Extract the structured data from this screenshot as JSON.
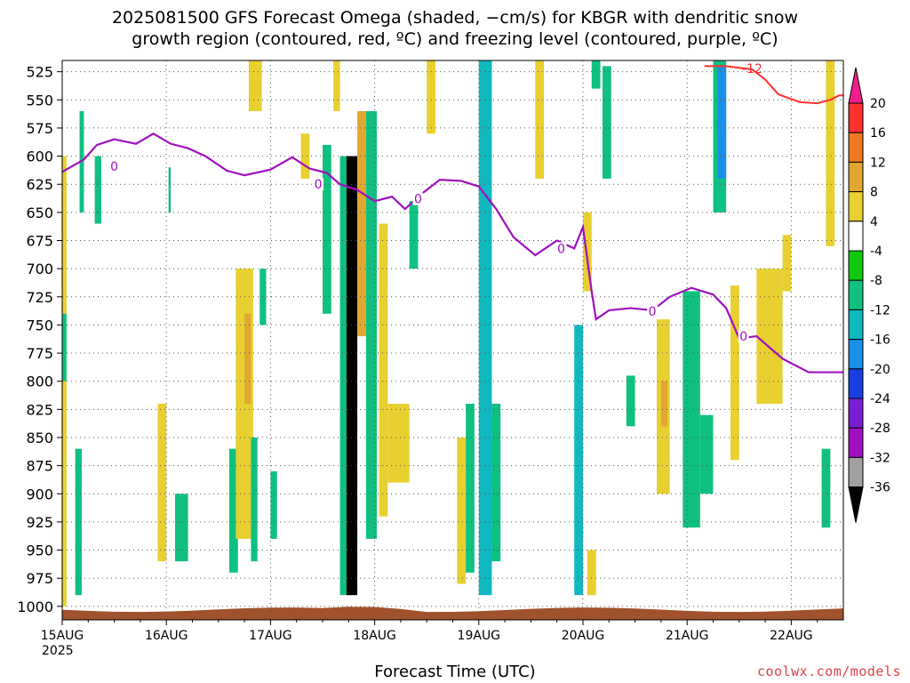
{
  "header": {
    "title_line1": "2025081500 GFS Forecast Omega (shaded, −cm/s) for KBGR with dendritic snow",
    "title_line2": "growth region (contoured, red, ºC) and freezing level (contoured, purple, ºC)"
  },
  "footer": {
    "xlabel": "Forecast Time (UTC)",
    "year": "2025",
    "credit": "coolwx.com/models"
  },
  "chart_data": {
    "type": "heatmap",
    "title": "2025081500 GFS Forecast Omega (shaded, −cm/s) for KBGR with dendritic snow growth region (contoured, red, ºC) and freezing level (contoured, purple, ºC)",
    "xlabel": "Forecast Time (UTC)",
    "ylabel": "",
    "y_axis": {
      "ticks": [
        525,
        550,
        575,
        600,
        625,
        650,
        675,
        700,
        725,
        750,
        775,
        800,
        825,
        850,
        875,
        900,
        925,
        950,
        975,
        1000
      ],
      "range": [
        1012,
        515
      ],
      "units": "hPa"
    },
    "x_axis": {
      "ticks": [
        "15AUG",
        "16AUG",
        "17AUG",
        "18AUG",
        "19AUG",
        "20AUG",
        "21AUG",
        "22AUG"
      ],
      "tick_hours": [
        0,
        24,
        48,
        72,
        96,
        120,
        144,
        168
      ],
      "range_hours": [
        0,
        180
      ]
    },
    "grid": true,
    "colorbar": {
      "labels": [
        "20",
        "16",
        "12",
        "8",
        "4",
        "-4",
        "-8",
        "-12",
        "-16",
        "-20",
        "-24",
        "-28",
        "-32",
        "-36"
      ],
      "colors": [
        "#ff3030",
        "#f07820",
        "#e0a830",
        "#e8d030",
        "#ffffff",
        "#10c810",
        "#10c080",
        "#10b8c0",
        "#1890e8",
        "#1840e0",
        "#7820d0",
        "#a010c0",
        "#a0a0a0"
      ],
      "placement": "right"
    },
    "cells": [
      {
        "t0": 0,
        "t1": 1,
        "p0": 600,
        "p1": 1000,
        "v": 6
      },
      {
        "t0": 0,
        "t1": 1,
        "p0": 740,
        "p1": 800,
        "v": -10
      },
      {
        "t0": 3,
        "t1": 4.5,
        "p0": 860,
        "p1": 990,
        "v": -10
      },
      {
        "t0": 4,
        "t1": 5,
        "p0": 560,
        "p1": 650,
        "v": -10
      },
      {
        "t0": 7.5,
        "t1": 9,
        "p0": 600,
        "p1": 660,
        "v": -8
      },
      {
        "t0": 22,
        "t1": 24,
        "p0": 820,
        "p1": 960,
        "v": 6
      },
      {
        "t0": 26,
        "t1": 29,
        "p0": 900,
        "p1": 960,
        "v": -10
      },
      {
        "t0": 24.5,
        "t1": 25,
        "p0": 610,
        "p1": 650,
        "v": -8
      },
      {
        "t0": 38.5,
        "t1": 40.5,
        "p0": 860,
        "p1": 970,
        "v": -10
      },
      {
        "t0": 40,
        "t1": 44,
        "p0": 700,
        "p1": 940,
        "v": 6
      },
      {
        "t0": 42,
        "t1": 43.5,
        "p0": 740,
        "p1": 820,
        "v": 10
      },
      {
        "t0": 43,
        "t1": 46,
        "p0": 500,
        "p1": 560,
        "v": 6
      },
      {
        "t0": 43.5,
        "t1": 45,
        "p0": 850,
        "p1": 960,
        "v": -10
      },
      {
        "t0": 45.5,
        "t1": 47,
        "p0": 700,
        "p1": 750,
        "v": -8
      },
      {
        "t0": 48,
        "t1": 49.5,
        "p0": 880,
        "p1": 940,
        "v": -8
      },
      {
        "t0": 55,
        "t1": 57,
        "p0": 580,
        "p1": 620,
        "v": 6
      },
      {
        "t0": 60,
        "t1": 62,
        "p0": 590,
        "p1": 740,
        "v": -8
      },
      {
        "t0": 62.5,
        "t1": 64,
        "p0": 500,
        "p1": 560,
        "v": 6
      },
      {
        "t0": 64,
        "t1": 66,
        "p0": 600,
        "p1": 990,
        "v": -8
      },
      {
        "t0": 65.5,
        "t1": 68,
        "p0": 600,
        "p1": 990,
        "v": -36
      },
      {
        "t0": 66.5,
        "t1": 67.5,
        "p0": 630,
        "p1": 930,
        "v": -40
      },
      {
        "t0": 68,
        "t1": 70,
        "p0": 560,
        "p1": 760,
        "v": 8
      },
      {
        "t0": 70,
        "t1": 72.5,
        "p0": 560,
        "p1": 940,
        "v": -8
      },
      {
        "t0": 73,
        "t1": 75,
        "p0": 660,
        "p1": 920,
        "v": 6
      },
      {
        "t0": 75,
        "t1": 80,
        "p0": 820,
        "p1": 890,
        "v": 6
      },
      {
        "t0": 80,
        "t1": 82,
        "p0": 640,
        "p1": 700,
        "v": -8
      },
      {
        "t0": 84,
        "t1": 86,
        "p0": 500,
        "p1": 580,
        "v": 6
      },
      {
        "t0": 91,
        "t1": 93,
        "p0": 850,
        "p1": 980,
        "v": 6
      },
      {
        "t0": 93,
        "t1": 95,
        "p0": 820,
        "p1": 970,
        "v": -10
      },
      {
        "t0": 96,
        "t1": 99,
        "p0": 500,
        "p1": 990,
        "v": -12
      },
      {
        "t0": 99,
        "t1": 101,
        "p0": 820,
        "p1": 960,
        "v": -8
      },
      {
        "t0": 109,
        "t1": 111,
        "p0": 500,
        "p1": 620,
        "v": 6
      },
      {
        "t0": 118,
        "t1": 120,
        "p0": 750,
        "p1": 990,
        "v": -14
      },
      {
        "t0": 120,
        "t1": 122,
        "p0": 650,
        "p1": 720,
        "v": 6
      },
      {
        "t0": 121,
        "t1": 123,
        "p0": 950,
        "p1": 990,
        "v": 6
      },
      {
        "t0": 122,
        "t1": 124,
        "p0": 500,
        "p1": 540,
        "v": -8
      },
      {
        "t0": 124.5,
        "t1": 126.5,
        "p0": 520,
        "p1": 620,
        "v": -10
      },
      {
        "t0": 130,
        "t1": 132,
        "p0": 795,
        "p1": 840,
        "v": -10
      },
      {
        "t0": 137,
        "t1": 140,
        "p0": 745,
        "p1": 900,
        "v": 6
      },
      {
        "t0": 138,
        "t1": 139.5,
        "p0": 800,
        "p1": 840,
        "v": 10
      },
      {
        "t0": 143,
        "t1": 147,
        "p0": 720,
        "p1": 930,
        "v": -10
      },
      {
        "t0": 147,
        "t1": 150,
        "p0": 830,
        "p1": 900,
        "v": -8
      },
      {
        "t0": 150,
        "t1": 153,
        "p0": 500,
        "p1": 650,
        "v": -10
      },
      {
        "t0": 151,
        "t1": 153,
        "p0": 520,
        "p1": 620,
        "v": -16
      },
      {
        "t0": 154,
        "t1": 156,
        "p0": 715,
        "p1": 870,
        "v": 6
      },
      {
        "t0": 160,
        "t1": 166,
        "p0": 700,
        "p1": 820,
        "v": 6
      },
      {
        "t0": 166,
        "t1": 168,
        "p0": 670,
        "p1": 720,
        "v": 6
      },
      {
        "t0": 175,
        "t1": 177,
        "p0": 860,
        "p1": 930,
        "v": -10
      },
      {
        "t0": 176,
        "t1": 178,
        "p0": 500,
        "p1": 680,
        "v": 6
      }
    ],
    "freezing_level": {
      "label": "0",
      "color": "#a010c0",
      "points": [
        [
          0,
          614
        ],
        [
          5,
          603
        ],
        [
          8,
          590
        ],
        [
          12,
          585
        ],
        [
          17,
          589
        ],
        [
          21,
          580
        ],
        [
          25,
          589
        ],
        [
          29,
          593
        ],
        [
          33,
          600
        ],
        [
          38,
          613
        ],
        [
          42,
          617
        ],
        [
          48,
          612
        ],
        [
          53,
          601
        ],
        [
          57,
          611
        ],
        [
          61,
          615
        ],
        [
          64,
          625
        ],
        [
          68,
          630
        ],
        [
          72,
          640
        ],
        [
          76,
          636
        ],
        [
          79,
          647
        ],
        [
          83,
          633
        ],
        [
          87,
          621
        ],
        [
          92,
          622
        ],
        [
          96,
          627
        ],
        [
          100,
          647
        ],
        [
          104,
          672
        ],
        [
          109,
          688
        ],
        [
          114,
          675
        ],
        [
          118,
          682
        ],
        [
          120,
          663
        ],
        [
          122,
          720
        ],
        [
          123,
          745
        ],
        [
          126,
          737
        ],
        [
          131,
          735
        ],
        [
          136,
          737
        ],
        [
          140,
          725
        ],
        [
          145,
          717
        ],
        [
          150,
          723
        ],
        [
          153,
          735
        ],
        [
          156,
          762
        ],
        [
          160,
          760
        ],
        [
          166,
          780
        ],
        [
          172,
          792
        ],
        [
          180,
          792
        ]
      ]
    },
    "dgz_contour": {
      "label": "-12",
      "color": "#ff3030",
      "points": [
        [
          148,
          520
        ],
        [
          153,
          520
        ],
        [
          159,
          523
        ],
        [
          162,
          532
        ],
        [
          165,
          545
        ],
        [
          170,
          552
        ],
        [
          174,
          553
        ],
        [
          177,
          550
        ],
        [
          179,
          546
        ],
        [
          180,
          546
        ]
      ]
    },
    "terrain_pressure": 1003,
    "terrain_color": "#a0522d"
  }
}
